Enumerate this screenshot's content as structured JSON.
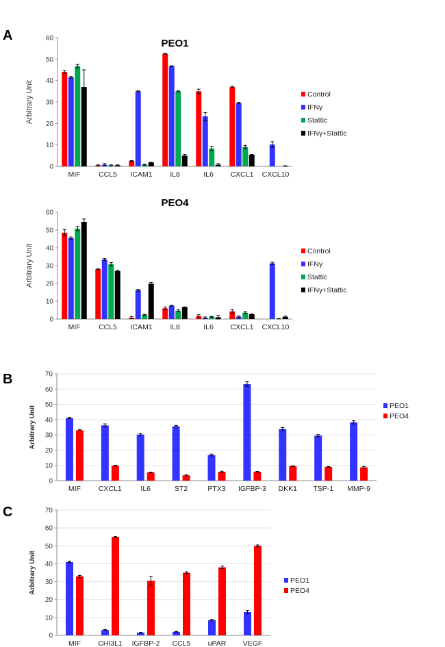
{
  "panel_labels": [
    "A",
    "B",
    "C"
  ],
  "colors": {
    "Control": "#ff0000",
    "IFNγ": "#3333ff",
    "Stattic": "#00a84f",
    "IFNγ+Stattic": "#000000",
    "PEO1": "#3333ff",
    "PEO4": "#ff0000"
  },
  "chart_data": [
    {
      "type": "bar",
      "title": "PEO1",
      "ylabel": "Arbitrary Unit",
      "ylim": [
        0,
        60
      ],
      "yticks": [
        0,
        10,
        20,
        30,
        40,
        50,
        60
      ],
      "legend": "right",
      "categories": [
        "MIF",
        "CCL5",
        "ICAM1",
        "IL8",
        "IL6",
        "CXCL1",
        "CXCL10"
      ],
      "series": [
        {
          "name": "Control",
          "values": [
            44,
            0.5,
            2.5,
            52.5,
            35,
            37,
            0
          ],
          "errors": [
            0.7,
            0.2,
            0.2,
            0.2,
            1,
            0.3,
            0
          ]
        },
        {
          "name": "IFNγ",
          "values": [
            41.5,
            0.8,
            35,
            46.7,
            23.3,
            29.5,
            10.2
          ],
          "errors": [
            0.4,
            0.5,
            0.2,
            0.2,
            1.8,
            0.3,
            1.3
          ]
        },
        {
          "name": "Stattic",
          "values": [
            46.7,
            0.5,
            0.8,
            35,
            8.3,
            9,
            0
          ],
          "errors": [
            0.8,
            0.2,
            0.2,
            0.2,
            1,
            0.8,
            0
          ]
        },
        {
          "name": "IFNγ+Stattic",
          "values": [
            37,
            0.5,
            1.8,
            5,
            0.8,
            5.4,
            0.2
          ],
          "errors": [
            8,
            0.2,
            0.1,
            0.6,
            0.5,
            0.2,
            0.1
          ]
        }
      ]
    },
    {
      "type": "bar",
      "title": "PEO4",
      "ylabel": "Arbitrary Unit",
      "ylim": [
        0,
        60
      ],
      "yticks": [
        0,
        10,
        20,
        30,
        40,
        50,
        60
      ],
      "legend": "right",
      "categories": [
        "MIF",
        "CCL5",
        "ICAM1",
        "IL8",
        "IL6",
        "CXCL1",
        "CXCL10"
      ],
      "series": [
        {
          "name": "Control",
          "values": [
            48.5,
            28,
            0.8,
            6,
            1.6,
            4.3,
            0
          ],
          "errors": [
            1.8,
            0.2,
            0.6,
            0.8,
            0.8,
            1,
            0
          ]
        },
        {
          "name": "IFNγ",
          "values": [
            45.5,
            33.4,
            16.2,
            7.5,
            0.7,
            1.3,
            31.3
          ],
          "errors": [
            0.6,
            0.6,
            0.5,
            0.2,
            0.5,
            0.5,
            0.6
          ]
        },
        {
          "name": "Stattic",
          "values": [
            50.8,
            30.8,
            2.4,
            4.7,
            1.3,
            3.6,
            0.2
          ],
          "errors": [
            1.2,
            0.9,
            0.2,
            0.6,
            0.2,
            0.6,
            0.1
          ]
        },
        {
          "name": "IFNγ+Stattic",
          "values": [
            54.6,
            27,
            19.8,
            6.7,
            1,
            2.7,
            1.3
          ],
          "errors": [
            1.6,
            0.4,
            0.8,
            0.1,
            1,
            0.2,
            0.4
          ]
        }
      ]
    },
    {
      "type": "bar",
      "title": "",
      "ylabel": "Arbitrary Unit",
      "ylim": [
        0,
        70
      ],
      "yticks": [
        0,
        10,
        20,
        30,
        40,
        50,
        60,
        70
      ],
      "legend": "right",
      "categories": [
        "MIF",
        "CXCL1",
        "IL6",
        "ST2",
        "PTX3",
        "IGFBP-3",
        "DKK1",
        "TSP-1",
        "MMP-9"
      ],
      "series": [
        {
          "name": "PEO1",
          "values": [
            41,
            36.2,
            30.2,
            35.6,
            16.8,
            63.3,
            33.8,
            29.5,
            38.2
          ],
          "errors": [
            0.4,
            1,
            0.6,
            0.6,
            0.6,
            1.5,
            1,
            0.7,
            1
          ]
        },
        {
          "name": "PEO4",
          "values": [
            33,
            9.8,
            5.4,
            3.5,
            5.8,
            5.8,
            9.5,
            9,
            8.7
          ],
          "errors": [
            0.4,
            0.2,
            0.2,
            0.4,
            0.4,
            0.2,
            0.2,
            0.2,
            0.6
          ]
        }
      ]
    },
    {
      "type": "bar",
      "title": "",
      "ylabel": "Arbitrary Unit",
      "ylim": [
        0,
        70
      ],
      "yticks": [
        0,
        10,
        20,
        30,
        40,
        50,
        60,
        70
      ],
      "legend": "right",
      "categories": [
        "MIF",
        "CHI3L1",
        "IGFBP-2",
        "CCL5",
        "uPAR",
        "VEGF"
      ],
      "series": [
        {
          "name": "PEO1",
          "values": [
            41,
            3,
            1.5,
            2,
            8.5,
            13
          ],
          "errors": [
            0.5,
            0.3,
            0.2,
            0.2,
            0.4,
            1
          ]
        },
        {
          "name": "PEO4",
          "values": [
            33,
            55,
            30.5,
            35,
            38,
            50
          ],
          "errors": [
            0.5,
            0.2,
            2.5,
            0.5,
            0.7,
            0.5
          ]
        }
      ]
    }
  ]
}
